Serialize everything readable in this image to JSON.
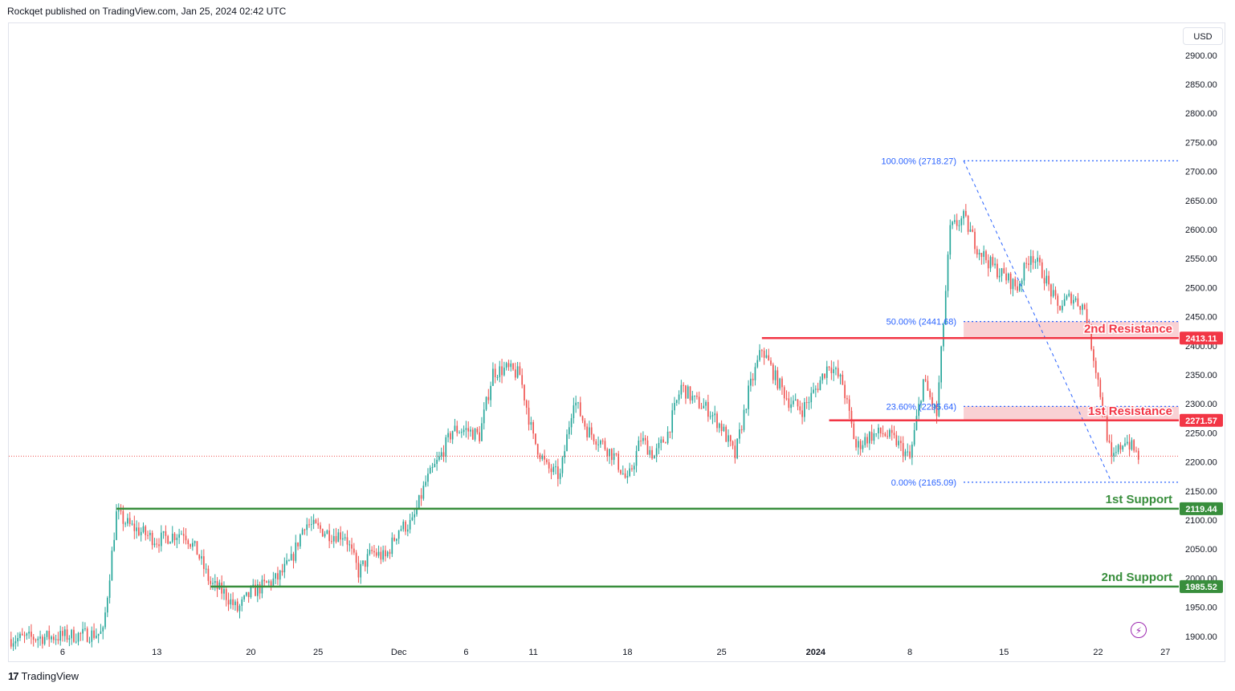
{
  "header": {
    "publisher_text": "Rockqet published on TradingView.com, Jan 25, 2024 02:42 UTC"
  },
  "currency": "USD",
  "footer": {
    "brand": "TradingView",
    "mark": "17"
  },
  "icons": {
    "footer": "tradingview-logo-icon",
    "alert": "lightning-icon"
  },
  "colors": {
    "up": "#26a69a",
    "down": "#ef5350",
    "resistance": "#f23645",
    "support": "#388e3c",
    "fib": "#2962ff",
    "zone": "#f8c9cc",
    "current": "#ef5350"
  },
  "chart_data": {
    "type": "candlestick",
    "title": "",
    "xlabel": "",
    "ylabel": "",
    "ylim": [
      1890,
      2955
    ],
    "x_range": [
      "2023-11-02",
      "2024-01-28"
    ],
    "grid": false,
    "y_ticks": [
      "1900.00",
      "1950.00",
      "2000.00",
      "2050.00",
      "2100.00",
      "2150.00",
      "2200.00",
      "2250.00",
      "2300.00",
      "2350.00",
      "2400.00",
      "2450.00",
      "2500.00",
      "2550.00",
      "2600.00",
      "2650.00",
      "2700.00",
      "2750.00",
      "2800.00",
      "2850.00",
      "2900.00"
    ],
    "x_ticks": [
      {
        "label": "6",
        "date": "2023-11-06",
        "bold": false
      },
      {
        "label": "13",
        "date": "2023-11-13",
        "bold": false
      },
      {
        "label": "20",
        "date": "2023-11-20",
        "bold": false
      },
      {
        "label": "25",
        "date": "2023-11-25",
        "bold": false
      },
      {
        "label": "Dec",
        "date": "2023-12-01",
        "bold": false
      },
      {
        "label": "6",
        "date": "2023-12-06",
        "bold": false
      },
      {
        "label": "11",
        "date": "2023-12-11",
        "bold": false
      },
      {
        "label": "18",
        "date": "2023-12-18",
        "bold": false
      },
      {
        "label": "25",
        "date": "2023-12-25",
        "bold": false
      },
      {
        "label": "2024",
        "date": "2024-01-01",
        "bold": true
      },
      {
        "label": "8",
        "date": "2024-01-08",
        "bold": false
      },
      {
        "label": "15",
        "date": "2024-01-15",
        "bold": false
      },
      {
        "label": "22",
        "date": "2024-01-22",
        "bold": false
      },
      {
        "label": "27",
        "date": "2024-01-27",
        "bold": false
      }
    ],
    "current_price": 2210,
    "price_path": [
      [
        "2023-11-02",
        1895
      ],
      [
        "2023-11-06",
        1900
      ],
      [
        "2023-11-09",
        1905
      ],
      [
        "2023-11-10",
        2110
      ],
      [
        "2023-11-11",
        2090
      ],
      [
        "2023-11-13",
        2065
      ],
      [
        "2023-11-15",
        2080
      ],
      [
        "2023-11-16",
        2045
      ],
      [
        "2023-11-17",
        1990
      ],
      [
        "2023-11-18",
        1975
      ],
      [
        "2023-11-19",
        1945
      ],
      [
        "2023-11-20",
        1975
      ],
      [
        "2023-11-22",
        2000
      ],
      [
        "2023-11-23",
        2030
      ],
      [
        "2023-11-24",
        2095
      ],
      [
        "2023-11-25",
        2085
      ],
      [
        "2023-11-26",
        2075
      ],
      [
        "2023-11-27",
        2075
      ],
      [
        "2023-11-28",
        2010
      ],
      [
        "2023-11-29",
        2045
      ],
      [
        "2023-11-30",
        2035
      ],
      [
        "2023-12-01",
        2085
      ],
      [
        "2023-12-02",
        2095
      ],
      [
        "2023-12-03",
        2165
      ],
      [
        "2023-12-04",
        2205
      ],
      [
        "2023-12-05",
        2255
      ],
      [
        "2023-12-06",
        2255
      ],
      [
        "2023-12-07",
        2245
      ],
      [
        "2023-12-08",
        2355
      ],
      [
        "2023-12-09",
        2360
      ],
      [
        "2023-12-10",
        2350
      ],
      [
        "2023-12-11",
        2240
      ],
      [
        "2023-12-12",
        2190
      ],
      [
        "2023-12-13",
        2175
      ],
      [
        "2023-12-14",
        2310
      ],
      [
        "2023-12-15",
        2255
      ],
      [
        "2023-12-16",
        2235
      ],
      [
        "2023-12-17",
        2210
      ],
      [
        "2023-12-18",
        2165
      ],
      [
        "2023-12-19",
        2240
      ],
      [
        "2023-12-20",
        2210
      ],
      [
        "2023-12-21",
        2250
      ],
      [
        "2023-12-22",
        2330
      ],
      [
        "2023-12-23",
        2305
      ],
      [
        "2023-12-24",
        2290
      ],
      [
        "2023-12-25",
        2260
      ],
      [
        "2023-12-26",
        2210
      ],
      [
        "2023-12-27",
        2320
      ],
      [
        "2023-12-28",
        2395
      ],
      [
        "2023-12-29",
        2345
      ],
      [
        "2023-12-30",
        2305
      ],
      [
        "2023-12-31",
        2290
      ],
      [
        "2024-01-01",
        2325
      ],
      [
        "2024-01-02",
        2370
      ],
      [
        "2024-01-03",
        2335
      ],
      [
        "2024-01-04",
        2225
      ],
      [
        "2024-01-05",
        2245
      ],
      [
        "2024-01-06",
        2250
      ],
      [
        "2024-01-07",
        2235
      ],
      [
        "2024-01-08",
        2205
      ],
      [
        "2024-01-09",
        2340
      ],
      [
        "2024-01-10",
        2280
      ],
      [
        "2024-01-11",
        2600
      ],
      [
        "2024-01-12",
        2620
      ],
      [
        "2024-01-13",
        2570
      ],
      [
        "2024-01-14",
        2540
      ],
      [
        "2024-01-15",
        2520
      ],
      [
        "2024-01-16",
        2500
      ],
      [
        "2024-01-17",
        2560
      ],
      [
        "2024-01-18",
        2520
      ],
      [
        "2024-01-19",
        2465
      ],
      [
        "2024-01-20",
        2485
      ],
      [
        "2024-01-21",
        2465
      ],
      [
        "2024-01-22",
        2340
      ],
      [
        "2024-01-23",
        2200
      ],
      [
        "2024-01-24",
        2240
      ],
      [
        "2024-01-25",
        2210
      ]
    ],
    "levels": [
      {
        "label": "2413.11",
        "zone_label": "2nd Resistance",
        "value": 2413.11,
        "kind": "resistance",
        "start": "2023-12-28"
      },
      {
        "label": "2271.57",
        "zone_label": "1st Resistance",
        "value": 2271.57,
        "kind": "resistance",
        "start": "2024-01-02"
      },
      {
        "label": "2119.44",
        "zone_label": "1st Support",
        "value": 2119.44,
        "kind": "support",
        "start": "2023-11-10"
      },
      {
        "label": "1985.52",
        "zone_label": "2nd Support",
        "value": 1985.52,
        "kind": "support",
        "start": "2023-11-17"
      }
    ],
    "zones": [
      {
        "kind": "resistance",
        "from": 2413.11,
        "to": 2441.68,
        "start": "2024-01-12"
      },
      {
        "kind": "resistance",
        "from": 2271.57,
        "to": 2295.64,
        "start": "2024-01-12"
      }
    ],
    "fibonacci": {
      "start": "2024-01-12",
      "end": "2024-01-28",
      "levels": [
        {
          "label": "100.00% (2718.27)",
          "value": 2718.27
        },
        {
          "label": "50.00% (2441.68)",
          "value": 2441.68
        },
        {
          "label": "23.60% (2295.64)",
          "value": 2295.64
        },
        {
          "label": "0.00% (2165.09)",
          "value": 2165.09
        }
      ],
      "trend_from": [
        "2024-01-12",
        2718.27
      ],
      "trend_to": [
        "2024-01-23",
        2165.09
      ]
    }
  }
}
